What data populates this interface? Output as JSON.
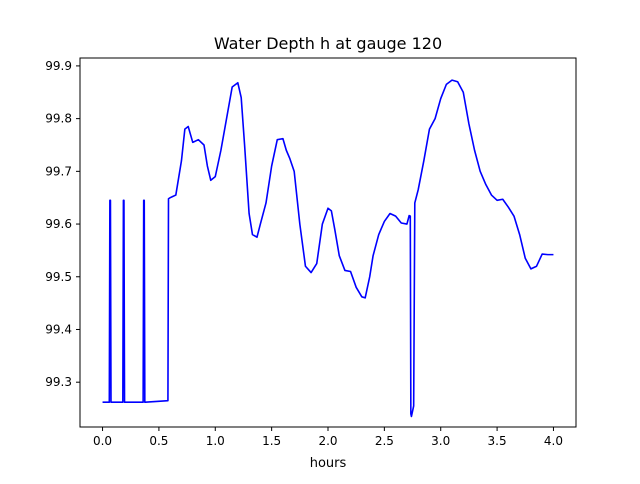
{
  "chart_data": {
    "type": "line",
    "title": "Water Depth h at gauge 120",
    "xlabel": "hours",
    "ylabel": "",
    "xlim": [
      -0.2,
      4.2
    ],
    "ylim": [
      99.215,
      99.915
    ],
    "xticks": [
      0.0,
      0.5,
      1.0,
      1.5,
      2.0,
      2.5,
      3.0,
      3.5,
      4.0
    ],
    "xtick_labels": [
      "0.0",
      "0.5",
      "1.0",
      "1.5",
      "2.0",
      "2.5",
      "3.0",
      "3.5",
      "4.0"
    ],
    "yticks": [
      99.3,
      99.4,
      99.5,
      99.6,
      99.7,
      99.8,
      99.9
    ],
    "ytick_labels": [
      "99.3",
      "99.4",
      "99.5",
      "99.6",
      "99.7",
      "99.8",
      "99.9"
    ],
    "grid": false,
    "legend": "none",
    "series": [
      {
        "color": "#0000ff",
        "x": [
          0.0,
          0.06,
          0.065,
          0.07,
          0.075,
          0.08,
          0.18,
          0.185,
          0.19,
          0.195,
          0.2,
          0.36,
          0.365,
          0.37,
          0.375,
          0.38,
          0.58,
          0.585,
          0.6,
          0.62,
          0.65,
          0.7,
          0.73,
          0.76,
          0.78,
          0.8,
          0.85,
          0.9,
          0.93,
          0.96,
          1.0,
          1.05,
          1.1,
          1.15,
          1.2,
          1.23,
          1.26,
          1.3,
          1.33,
          1.37,
          1.4,
          1.45,
          1.5,
          1.55,
          1.6,
          1.63,
          1.66,
          1.7,
          1.75,
          1.8,
          1.85,
          1.9,
          1.95,
          2.0,
          2.03,
          2.06,
          2.1,
          2.15,
          2.2,
          2.25,
          2.3,
          2.33,
          2.37,
          2.4,
          2.45,
          2.5,
          2.55,
          2.6,
          2.65,
          2.7,
          2.72,
          2.73,
          2.735,
          2.74,
          2.75,
          2.76,
          2.77,
          2.8,
          2.85,
          2.9,
          2.95,
          3.0,
          3.05,
          3.1,
          3.15,
          3.2,
          3.25,
          3.3,
          3.35,
          3.4,
          3.45,
          3.5,
          3.55,
          3.6,
          3.65,
          3.7,
          3.75,
          3.8,
          3.85,
          3.9,
          3.95,
          4.0
        ],
        "y": [
          99.262,
          99.262,
          99.645,
          99.645,
          99.262,
          99.262,
          99.262,
          99.645,
          99.645,
          99.262,
          99.262,
          99.262,
          99.645,
          99.645,
          99.262,
          99.262,
          99.265,
          99.648,
          99.65,
          99.652,
          99.655,
          99.72,
          99.78,
          99.785,
          99.77,
          99.755,
          99.76,
          99.75,
          99.71,
          99.683,
          99.69,
          99.74,
          99.8,
          99.86,
          99.868,
          99.84,
          99.75,
          99.62,
          99.58,
          99.575,
          99.6,
          99.64,
          99.71,
          99.76,
          99.762,
          99.74,
          99.725,
          99.7,
          99.6,
          99.52,
          99.508,
          99.525,
          99.6,
          99.63,
          99.625,
          99.59,
          99.54,
          99.512,
          99.51,
          99.48,
          99.462,
          99.46,
          99.5,
          99.54,
          99.58,
          99.605,
          99.62,
          99.615,
          99.602,
          99.6,
          99.616,
          99.615,
          99.24,
          99.235,
          99.245,
          99.255,
          99.64,
          99.665,
          99.72,
          99.78,
          99.8,
          99.838,
          99.865,
          99.873,
          99.87,
          99.85,
          99.79,
          99.74,
          99.7,
          99.675,
          99.655,
          99.645,
          99.647,
          99.632,
          99.615,
          99.58,
          99.535,
          99.515,
          99.52,
          99.543,
          99.542,
          99.542
        ]
      }
    ]
  }
}
